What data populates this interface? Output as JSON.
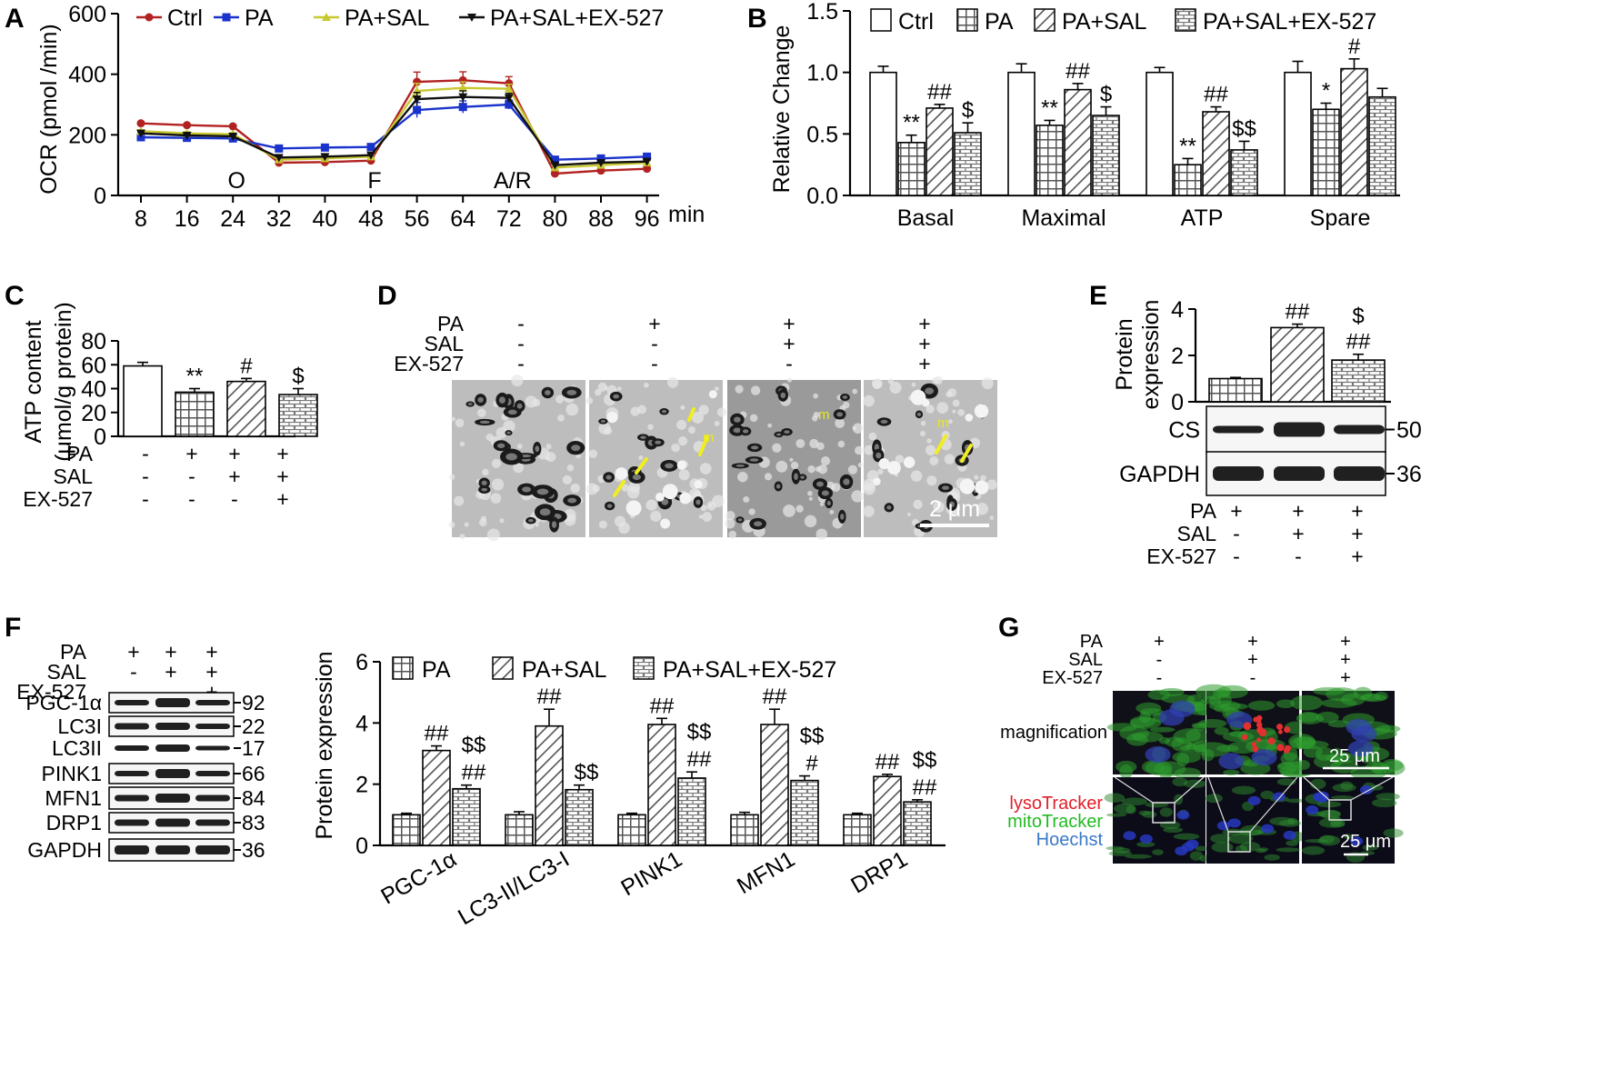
{
  "panel_letters": {
    "a": "A",
    "b": "B",
    "c": "C",
    "d": "D",
    "e": "E",
    "f": "F",
    "g": "G"
  },
  "colors": {
    "ctrl": "#b22222",
    "pa": "#1a33cc",
    "pa_sal": "#c8c832",
    "pa_sal_ex": "#111111"
  },
  "chart_data": [
    {
      "id": "A",
      "type": "line",
      "ylabel": "OCR (pmol /min)",
      "xlabel": "min",
      "x": [
        8,
        16,
        24,
        32,
        40,
        48,
        56,
        64,
        72,
        80,
        88,
        96
      ],
      "ylim": [
        0,
        600
      ],
      "yticks": [
        0,
        200,
        400,
        600
      ],
      "annotations": [
        {
          "label": "O",
          "x": 24
        },
        {
          "label": "F",
          "x": 48
        },
        {
          "label": "A/R",
          "x": 72
        }
      ],
      "series": [
        {
          "name": "Ctrl",
          "marker": "circle",
          "values": [
            238,
            232,
            228,
            108,
            110,
            115,
            375,
            380,
            370,
            72,
            82,
            88
          ],
          "err": [
            5,
            5,
            5,
            8,
            8,
            8,
            32,
            28,
            22,
            8,
            8,
            8
          ]
        },
        {
          "name": "PA",
          "marker": "square",
          "values": [
            192,
            190,
            188,
            155,
            158,
            160,
            282,
            292,
            300,
            118,
            122,
            128
          ],
          "err": [
            8,
            8,
            8,
            8,
            8,
            8,
            25,
            20,
            15,
            8,
            8,
            8
          ]
        },
        {
          "name": "PA+SAL",
          "marker": "triangle",
          "values": [
            212,
            205,
            202,
            118,
            122,
            128,
            345,
            355,
            352,
            92,
            100,
            108
          ],
          "err": [
            5,
            5,
            5,
            6,
            6,
            6,
            25,
            20,
            15,
            6,
            6,
            6
          ]
        },
        {
          "name": "PA+SAL+EX-527",
          "marker": "tri-down",
          "values": [
            205,
            198,
            195,
            125,
            128,
            133,
            318,
            325,
            322,
            100,
            108,
            112
          ],
          "err": [
            5,
            5,
            5,
            6,
            6,
            6,
            22,
            20,
            15,
            6,
            6,
            6
          ]
        }
      ]
    },
    {
      "id": "B",
      "type": "bar",
      "ylabel": "Relative Change",
      "ylim": [
        0,
        1.5
      ],
      "yticks": [
        "0.0",
        "0.5",
        "1.0",
        "1.5"
      ],
      "legend": [
        "Ctrl",
        "PA",
        "PA+SAL",
        "PA+SAL+EX-527"
      ],
      "categories": [
        "Basal",
        "Maximal",
        "ATP",
        "Spare"
      ],
      "series": [
        {
          "name": "Ctrl",
          "values": [
            1.0,
            1.0,
            1.0,
            1.0
          ],
          "err": [
            0.05,
            0.07,
            0.04,
            0.09
          ]
        },
        {
          "name": "PA",
          "values": [
            0.43,
            0.57,
            0.25,
            0.7
          ],
          "err": [
            0.06,
            0.04,
            0.05,
            0.05
          ]
        },
        {
          "name": "PA+SAL",
          "values": [
            0.71,
            0.86,
            0.68,
            1.03
          ],
          "err": [
            0.03,
            0.05,
            0.04,
            0.08
          ]
        },
        {
          "name": "PA+SAL+EX-527",
          "values": [
            0.51,
            0.65,
            0.37,
            0.8
          ],
          "err": [
            0.08,
            0.07,
            0.07,
            0.07
          ]
        }
      ],
      "sig": [
        [
          "",
          "**",
          "##",
          "$"
        ],
        [
          "",
          "**",
          "##",
          "$"
        ],
        [
          "",
          "**",
          "##",
          "$$"
        ],
        [
          "",
          "*",
          "#",
          ""
        ]
      ]
    },
    {
      "id": "C",
      "type": "bar",
      "ylabel": "ATP content",
      "ylabel2": "(μmol/g protein)",
      "ylim": [
        0,
        80
      ],
      "yticks": [
        "0",
        "20",
        "40",
        "60",
        "80"
      ],
      "values": [
        59,
        37,
        46,
        35
      ],
      "err": [
        3,
        3,
        2.5,
        5
      ],
      "sig": [
        "",
        "**",
        "#",
        "$"
      ],
      "conditions": {
        "labels": [
          "PA",
          "SAL",
          "EX-527"
        ],
        "values": [
          [
            "-",
            "+",
            "+",
            "+"
          ],
          [
            "-",
            "-",
            "+",
            "+"
          ],
          [
            "-",
            "-",
            "-",
            "+"
          ]
        ]
      }
    },
    {
      "id": "E",
      "type": "bar",
      "ylabel": "Protein",
      "ylabel2": "expression",
      "ylim": [
        0,
        4
      ],
      "yticks": [
        "0",
        "2",
        "4"
      ],
      "values": [
        1.0,
        3.2,
        1.8
      ],
      "err": [
        0.05,
        0.15,
        0.25
      ],
      "sig_top": [
        "",
        "",
        "$"
      ],
      "sig": [
        "",
        "##",
        "##"
      ],
      "blots": [
        {
          "name": "CS",
          "kda": "50"
        },
        {
          "name": "GAPDH",
          "kda": "36"
        }
      ],
      "conditions": {
        "labels": [
          "PA",
          "SAL",
          "EX-527"
        ],
        "values": [
          [
            "+",
            "+",
            "+"
          ],
          [
            "-",
            "+",
            "+"
          ],
          [
            "-",
            "-",
            "+"
          ]
        ]
      }
    },
    {
      "id": "F",
      "type": "bar",
      "ylabel": "Protein expression",
      "ylim": [
        0,
        6
      ],
      "yticks": [
        "0",
        "2",
        "4",
        "6"
      ],
      "legend": [
        "PA",
        "PA+SAL",
        "PA+SAL+EX-527"
      ],
      "categories": [
        "PGC-1α",
        "LC3-II/LC3-I",
        "PINK1",
        "MFN1",
        "DRP1"
      ],
      "series": [
        {
          "name": "PA",
          "values": [
            1.0,
            1.0,
            1.0,
            1.0,
            1.0
          ],
          "err": [
            0.05,
            0.1,
            0.05,
            0.08,
            0.05
          ]
        },
        {
          "name": "PA+SAL",
          "values": [
            3.1,
            3.9,
            3.95,
            3.95,
            2.25
          ],
          "err": [
            0.15,
            0.55,
            0.2,
            0.5,
            0.07
          ]
        },
        {
          "name": "PA+SAL+EX-527",
          "values": [
            1.85,
            1.82,
            2.2,
            2.12,
            1.42
          ],
          "err": [
            0.12,
            0.15,
            0.2,
            0.15,
            0.07
          ]
        }
      ],
      "sig": [
        [
          "",
          "##",
          "$$|##"
        ],
        [
          "",
          "##",
          "$$"
        ],
        [
          "",
          "##",
          "$$|##"
        ],
        [
          "",
          "##",
          "$$|#"
        ],
        [
          "",
          "##",
          "$$|##"
        ]
      ],
      "blots": [
        {
          "name": "PGC-1α",
          "kda": "92"
        },
        {
          "name": "LC3I",
          "kda": "22"
        },
        {
          "name": "LC3II",
          "kda": "17"
        },
        {
          "name": "PINK1",
          "kda": "66"
        },
        {
          "name": "MFN1",
          "kda": "84"
        },
        {
          "name": "DRP1",
          "kda": "83"
        },
        {
          "name": "GAPDH",
          "kda": "36"
        }
      ],
      "conditions": {
        "labels": [
          "PA",
          "SAL",
          "EX-527"
        ],
        "values": [
          [
            "+",
            "+",
            "+"
          ],
          [
            "-",
            "+",
            "+"
          ],
          [
            "-",
            "-",
            "+"
          ]
        ]
      }
    }
  ],
  "panel_d": {
    "labels": [
      "PA",
      "SAL",
      "EX-527"
    ],
    "values": [
      [
        "-",
        "+",
        "+",
        "+"
      ],
      [
        "-",
        "-",
        "+",
        "+"
      ],
      [
        "-",
        "-",
        "-",
        "+"
      ]
    ],
    "m_label": "m",
    "scale": "2 μm"
  },
  "panel_g": {
    "labels": [
      "PA",
      "SAL",
      "EX-527"
    ],
    "values": [
      [
        "+",
        "+",
        "+"
      ],
      [
        "-",
        "+",
        "+"
      ],
      [
        "-",
        "-",
        "+"
      ]
    ],
    "magnification": "magnification",
    "scale": "25 μm",
    "stains": [
      "lysoTracker",
      "mitoTracker",
      "Hoechst"
    ],
    "stain_colors": [
      "#e0202a",
      "#22bb22",
      "#3a78c8"
    ]
  }
}
